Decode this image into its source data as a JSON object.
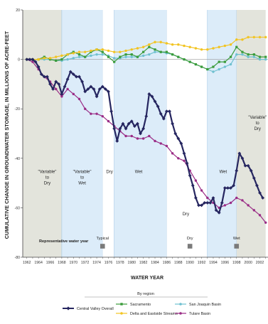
{
  "chart_data": {
    "type": "line",
    "title": "",
    "xlabel": "WATER YEAR",
    "ylabel": "CUMULATIVE CHANGE IN GROUNDWATER STORAGE, IN MILLIONS OF ACRE-FEET",
    "xlim": [
      1961,
      2003
    ],
    "ylim": [
      -80,
      20
    ],
    "x_ticks": [
      1962,
      1964,
      1966,
      1968,
      1970,
      1972,
      1974,
      1976,
      1978,
      1980,
      1982,
      1984,
      1986,
      1988,
      1990,
      1992,
      1994,
      1996,
      1998,
      2000,
      2002
    ],
    "x_tick_labels": [
      "1962",
      "1964",
      "1966",
      "1968",
      "1970",
      "1972",
      "1974",
      "1976",
      "1978",
      "1980",
      "1982",
      "1984",
      "1986",
      "1988",
      "1990",
      "1992",
      "1994",
      "1996",
      "1998",
      "2000",
      "2002"
    ],
    "y_ticks": [
      20,
      0,
      -20,
      -40,
      -60,
      -80
    ],
    "y_tick_labels": [
      "20",
      "0",
      "-20",
      "-40",
      "-60",
      "-80"
    ],
    "periods": [
      {
        "start": 1961,
        "end": 1968,
        "label": "\"Variable\"\nto\nDry",
        "type": "gray"
      },
      {
        "start": 1968,
        "end": 1975,
        "label": "\"Variable\"\nto\nWet",
        "type": "blue"
      },
      {
        "start": 1975,
        "end": 1977,
        "label": "Dry",
        "type": "white"
      },
      {
        "start": 1977,
        "end": 1986,
        "label": "Wet",
        "type": "blue"
      },
      {
        "start": 1986,
        "end": 1993,
        "label": "Dry",
        "type": "white"
      },
      {
        "start": 1993,
        "end": 1998,
        "label": "Wet",
        "type": "blue"
      },
      {
        "start": 1998,
        "end": 2003,
        "label": "\"Variable\"\nto\nDry",
        "type": "gray"
      }
    ],
    "representative": {
      "label": "Representative water year",
      "markers": [
        {
          "year": 1975,
          "label": "Typical"
        },
        {
          "year": 1990,
          "label": "Dry"
        },
        {
          "year": 1998,
          "label": "Wet"
        }
      ]
    },
    "series": [
      {
        "name": "Central Valley Overall",
        "color": "#262660",
        "x": [
          1962,
          1962.5,
          1963,
          1963.5,
          1964,
          1964.5,
          1965,
          1965.5,
          1966,
          1966.5,
          1967,
          1967.5,
          1968,
          1968.5,
          1969,
          1969.5,
          1970,
          1970.5,
          1971,
          1971.5,
          1972,
          1972.5,
          1973,
          1973.5,
          1974,
          1974.5,
          1975,
          1975.5,
          1976,
          1976.5,
          1977,
          1977.5,
          1978,
          1978.5,
          1979,
          1979.5,
          1980,
          1980.5,
          1981,
          1981.5,
          1982,
          1982.5,
          1983,
          1983.5,
          1984,
          1984.5,
          1985,
          1985.5,
          1986,
          1986.5,
          1987,
          1987.5,
          1988,
          1988.5,
          1989,
          1989.5,
          1990,
          1990.5,
          1991,
          1991.5,
          1992,
          1992.5,
          1993,
          1993.5,
          1994,
          1994.5,
          1995,
          1995.5,
          1996,
          1996.5,
          1997,
          1997.5,
          1998,
          1998.5,
          1999,
          1999.5,
          2000,
          2000.5,
          2001,
          2001.5,
          2002,
          2002.5
        ],
        "y": [
          0,
          0,
          0,
          -1,
          -3,
          -6,
          -7,
          -7,
          -10,
          -12,
          -9,
          -10,
          -14,
          -11,
          -8,
          -5,
          -6,
          -7,
          -7,
          -9,
          -13,
          -12,
          -11,
          -12,
          -15,
          -12,
          -11,
          -12,
          -13,
          -21,
          -28,
          -33,
          -28,
          -26,
          -28,
          -26,
          -25,
          -27,
          -26,
          -30,
          -28,
          -23,
          -14,
          -15,
          -17,
          -19,
          -22,
          -24,
          -21,
          -21,
          -26,
          -30,
          -32,
          -34,
          -38,
          -42,
          -47,
          -51,
          -56,
          -59,
          -59,
          -58,
          -58,
          -58,
          -56,
          -61,
          -62,
          -58,
          -52,
          -52,
          -52,
          -51,
          -45,
          -38,
          -40,
          -43,
          -43,
          -45,
          -48,
          -51,
          -54,
          -56
        ]
      },
      {
        "name": "Sacramento",
        "color": "#3a9b3a",
        "x": [
          1962,
          1963,
          1964,
          1965,
          1966,
          1967,
          1968,
          1969,
          1970,
          1971,
          1972,
          1973,
          1974,
          1975,
          1976,
          1977,
          1978,
          1979,
          1980,
          1981,
          1982,
          1983,
          1984,
          1985,
          1986,
          1987,
          1988,
          1989,
          1990,
          1991,
          1992,
          1993,
          1994,
          1995,
          1996,
          1997,
          1998,
          1999,
          2000,
          2001,
          2002,
          2003
        ],
        "y": [
          0,
          0,
          0,
          1,
          0,
          -0.5,
          0,
          2,
          3,
          2,
          1,
          3,
          4,
          3,
          1,
          -1,
          1,
          2,
          2,
          1,
          3,
          5,
          4,
          3,
          3,
          2,
          1,
          0,
          -1,
          -2,
          -3,
          -4,
          -3,
          -1,
          -1,
          1,
          5,
          3,
          2,
          2,
          1,
          1
        ]
      },
      {
        "name": "Delta and Eastside Streams",
        "color": "#f2c422",
        "x": [
          1962,
          1963,
          1964,
          1965,
          1966,
          1967,
          1968,
          1969,
          1970,
          1971,
          1972,
          1973,
          1974,
          1975,
          1976,
          1977,
          1978,
          1979,
          1980,
          1981,
          1982,
          1983,
          1984,
          1985,
          1986,
          1987,
          1988,
          1989,
          1990,
          1991,
          1992,
          1993,
          1994,
          1995,
          1996,
          1997,
          1998,
          1999,
          2000,
          2001,
          2002,
          2003
        ],
        "y": [
          0,
          0,
          0,
          0.5,
          0.5,
          1,
          1.5,
          2,
          2.5,
          3,
          3,
          3.5,
          4,
          4,
          3.5,
          3,
          3,
          3.5,
          4,
          4.5,
          5,
          6,
          7,
          7,
          6.5,
          6,
          6,
          5.5,
          5,
          4.5,
          4,
          4,
          4.5,
          5,
          5.5,
          6,
          8,
          8,
          9,
          9,
          9,
          9
        ]
      },
      {
        "name": "San Joaquin Basin",
        "color": "#6fc0d0",
        "x": [
          1962,
          1963,
          1964,
          1965,
          1966,
          1967,
          1968,
          1969,
          1970,
          1971,
          1972,
          1973,
          1974,
          1975,
          1976,
          1977,
          1978,
          1979,
          1980,
          1981,
          1982,
          1983,
          1984,
          1985,
          1986,
          1987,
          1988,
          1989,
          1990,
          1991,
          1992,
          1993,
          1994,
          1995,
          1996,
          1997,
          1998,
          1999,
          2000,
          2001,
          2002,
          2003
        ],
        "y": [
          0,
          0,
          0,
          0,
          0,
          -0.5,
          -0.5,
          0,
          0.5,
          1,
          1,
          1.5,
          2,
          2,
          1.5,
          0.5,
          0.5,
          1,
          1,
          1,
          1.5,
          2,
          3,
          3,
          2.5,
          2,
          1,
          0,
          -1,
          -2,
          -3,
          -4,
          -5,
          -4,
          -3,
          -2,
          2,
          2,
          1,
          1,
          0,
          0
        ]
      },
      {
        "name": "Tulare Basin",
        "color": "#9a2c86",
        "x": [
          1962,
          1963,
          1964,
          1965,
          1966,
          1967,
          1968,
          1969,
          1970,
          1971,
          1972,
          1973,
          1974,
          1975,
          1976,
          1977,
          1978,
          1979,
          1980,
          1981,
          1982,
          1983,
          1984,
          1985,
          1986,
          1987,
          1988,
          1989,
          1990,
          1991,
          1992,
          1993,
          1994,
          1995,
          1996,
          1997,
          1998,
          1999,
          2000,
          2001,
          2002,
          2003
        ],
        "y": [
          0,
          -1,
          -4,
          -7,
          -9,
          -12,
          -15,
          -12,
          -14,
          -16,
          -20,
          -22,
          -22,
          -23,
          -25,
          -27,
          -29,
          -31,
          -31,
          -32,
          -32,
          -31,
          -33,
          -34,
          -35,
          -38,
          -40,
          -41,
          -45,
          -49,
          -53,
          -56,
          -58,
          -60,
          -59,
          -58,
          -56,
          -57,
          -59,
          -61,
          -63,
          -66
        ]
      }
    ],
    "legend": {
      "title": "By region",
      "position": "bottom"
    },
    "grid": false
  }
}
